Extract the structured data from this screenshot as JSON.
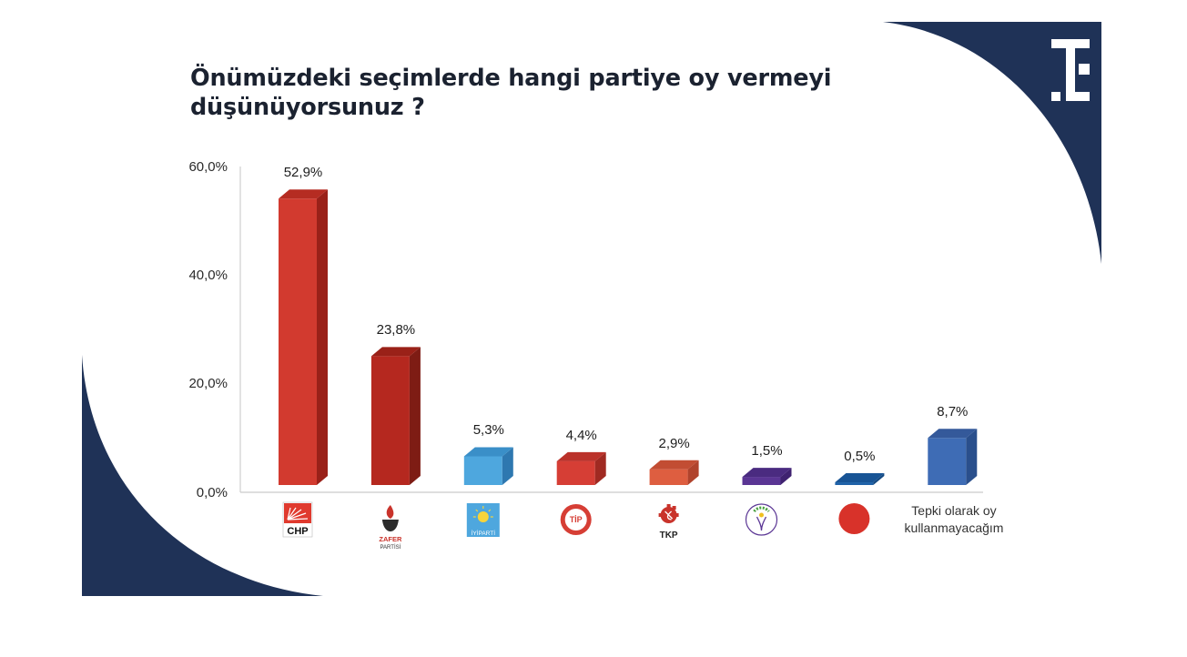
{
  "title": {
    "line1": "Önümüzdeki seçimlerde hangi partiye oy vermeyi",
    "line2": "düşünüyorsunuz ?"
  },
  "brand": {
    "logo_icon": "te-monogram-icon",
    "navy": "#1f3257"
  },
  "chart_data": {
    "type": "bar",
    "title": "Önümüzdeki seçimlerde hangi partiye oy vermeyi düşünüyorsunuz ?",
    "xlabel": "",
    "ylabel": "",
    "ylim": [
      0,
      60
    ],
    "yticks": [
      "0,0%",
      "20,0%",
      "40,0%",
      "60,0%"
    ],
    "grid": false,
    "legend": null,
    "style": "3d-bar",
    "categories": [
      "CHP",
      "Zafer Partisi",
      "İYİ Parti",
      "TİP",
      "TKP",
      "Yeşil Sol Parti",
      "MHP",
      "Tepki olarak oy kullanmayacağım"
    ],
    "values": [
      52.9,
      23.8,
      5.3,
      4.4,
      2.9,
      1.5,
      0.5,
      8.7
    ],
    "value_labels": [
      "52,9%",
      "23,8%",
      "5,3%",
      "4,4%",
      "2,9%",
      "1,5%",
      "0,5%",
      "8,7%"
    ],
    "colors": [
      "#d23a2f",
      "#b5281f",
      "#4ea7de",
      "#d63e35",
      "#de5e40",
      "#5a3594",
      "#1f62a8",
      "#3e6cb5"
    ],
    "side_colors": [
      "#9a2119",
      "#7e1c14",
      "#2e78b0",
      "#a02a22",
      "#b0432c",
      "#3f2270",
      "#154a82",
      "#2a4f8c"
    ],
    "top_colors": [
      "#b52c22",
      "#9a2118",
      "#3a8fc8",
      "#bb322a",
      "#c24d33",
      "#4a2b80",
      "#185495",
      "#34599a"
    ],
    "x_labels": [
      {
        "type": "logo",
        "icon": "chp-logo-icon",
        "text": "CHP"
      },
      {
        "type": "logo",
        "icon": "zafer-partisi-logo-icon",
        "text": "ZAFER",
        "sub": "PARTİSİ"
      },
      {
        "type": "logo",
        "icon": "iyi-parti-logo-icon",
        "text": "İYİPARTİ"
      },
      {
        "type": "logo",
        "icon": "tip-logo-icon",
        "text": "TİP"
      },
      {
        "type": "logo",
        "icon": "tkp-logo-icon",
        "text": "TKP"
      },
      {
        "type": "logo",
        "icon": "yesil-sol-parti-logo-icon",
        "text": ""
      },
      {
        "type": "logo",
        "icon": "mhp-logo-icon",
        "text": ""
      },
      {
        "type": "text",
        "line1": "Tepki olarak oy",
        "line2": "kullanmayacağım"
      }
    ]
  }
}
